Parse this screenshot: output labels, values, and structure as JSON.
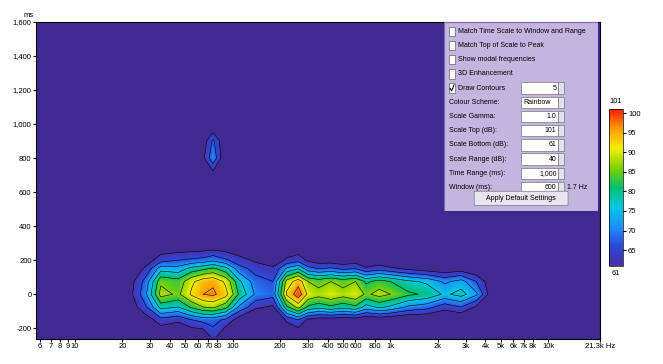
{
  "chart_data": {
    "type": "heatmap",
    "log": "x",
    "y_label": "ms",
    "x": [
      20,
      28,
      35,
      45,
      55,
      65,
      75,
      90,
      110,
      140,
      180,
      220,
      260,
      300,
      350,
      420,
      500,
      600,
      700,
      850,
      1000,
      1300,
      1700,
      2200,
      2800,
      3500,
      4500
    ],
    "y": [
      -250,
      -150,
      -75,
      0,
      75,
      150,
      200,
      300,
      700,
      800,
      900,
      1000
    ],
    "cells": [
      [
        55,
        55,
        55,
        55,
        55,
        55,
        63,
        55,
        55,
        55,
        55,
        55,
        55,
        55,
        55,
        55,
        55,
        55,
        55,
        55,
        55,
        55,
        55,
        55,
        55,
        55,
        55
      ],
      [
        55,
        58,
        64,
        62,
        66,
        68,
        68,
        65,
        58,
        55,
        55,
        62,
        66,
        60,
        58,
        58,
        57,
        58,
        56,
        57,
        56,
        55,
        55,
        55,
        55,
        55,
        55
      ],
      [
        55,
        65,
        78,
        76,
        82,
        86,
        87,
        83,
        70,
        62,
        60,
        80,
        88,
        80,
        78,
        80,
        78,
        80,
        74,
        77,
        75,
        70,
        68,
        63,
        66,
        60,
        55
      ],
      [
        55,
        70,
        88,
        85,
        92,
        96,
        97,
        93,
        80,
        70,
        68,
        92,
        99,
        90,
        88,
        90,
        88,
        90,
        85,
        88,
        86,
        82,
        80,
        75,
        78,
        72,
        55
      ],
      [
        55,
        68,
        85,
        83,
        90,
        94,
        95,
        90,
        77,
        68,
        66,
        88,
        94,
        86,
        84,
        86,
        84,
        86,
        80,
        83,
        81,
        77,
        75,
        70,
        73,
        66,
        55
      ],
      [
        55,
        62,
        74,
        73,
        78,
        80,
        82,
        78,
        68,
        64,
        62,
        72,
        76,
        68,
        66,
        67,
        65,
        66,
        62,
        64,
        62,
        60,
        58,
        57,
        58,
        56,
        55
      ],
      [
        55,
        58,
        64,
        66,
        67,
        68,
        70,
        67,
        63,
        60,
        58,
        62,
        64,
        60,
        58,
        58,
        57,
        58,
        56,
        57,
        56,
        55,
        55,
        55,
        55,
        55,
        55
      ],
      [
        55,
        55,
        55,
        55,
        55,
        55,
        55,
        55,
        55,
        55,
        55,
        55,
        55,
        55,
        55,
        55,
        55,
        55,
        55,
        55,
        55,
        55,
        55,
        55,
        55,
        55,
        55
      ],
      [
        55,
        55,
        55,
        55,
        55,
        55,
        58,
        55,
        55,
        55,
        55,
        55,
        55,
        55,
        55,
        55,
        55,
        55,
        55,
        55,
        55,
        55,
        55,
        55,
        55,
        55,
        55
      ],
      [
        55,
        55,
        55,
        55,
        55,
        60,
        70,
        55,
        55,
        55,
        55,
        55,
        55,
        55,
        55,
        55,
        55,
        55,
        55,
        55,
        55,
        55,
        55,
        55,
        55,
        55,
        55
      ],
      [
        55,
        55,
        55,
        55,
        55,
        58,
        67,
        55,
        55,
        55,
        55,
        55,
        55,
        55,
        55,
        55,
        55,
        55,
        55,
        55,
        55,
        55,
        55,
        55,
        55,
        55,
        55
      ],
      [
        55,
        55,
        55,
        55,
        55,
        55,
        55,
        55,
        55,
        55,
        55,
        55,
        55,
        55,
        55,
        55,
        55,
        55,
        55,
        55,
        55,
        55,
        55,
        55,
        55,
        55,
        55
      ]
    ],
    "xlim": [
      5.7,
      21300
    ],
    "xticks": [
      6,
      7,
      8,
      9,
      10,
      20,
      30,
      40,
      50,
      60,
      70,
      80,
      100,
      200,
      300,
      400,
      500,
      600,
      800,
      {
        "value": 1000,
        "label": "1k"
      },
      {
        "value": 2000,
        "label": "2k"
      },
      {
        "value": 3000,
        "label": "3k"
      },
      {
        "value": 4000,
        "label": "4k"
      },
      {
        "value": 5000,
        "label": "5k"
      },
      {
        "value": 6000,
        "label": "6k"
      },
      {
        "value": 7000,
        "label": "7k"
      },
      {
        "value": 8000,
        "label": "8k"
      },
      {
        "value": 10000,
        "label": "10k"
      },
      {
        "value": 21300,
        "label": "21.3k Hz"
      }
    ],
    "ylim": [
      -260,
      1600
    ],
    "yticks": [
      -200,
      0,
      200,
      400,
      600,
      800,
      {
        "value": 1000,
        "label": "1,000"
      },
      {
        "value": 1200,
        "label": "1,200"
      },
      {
        "value": 1400,
        "label": "1,400"
      },
      {
        "value": 1600,
        "label": "1,600"
      }
    ],
    "colorbar_lim": [
      61,
      101
    ],
    "colorbar_ticks": [
      65,
      70,
      75,
      80,
      85,
      90,
      95,
      100
    ]
  },
  "panel": {
    "checkboxes": [
      {
        "label": "Match Time Scale to Window and Range",
        "checked": false
      },
      {
        "label": "Match Top of Scale to Peak",
        "checked": false
      },
      {
        "label": "Show modal frequencies",
        "checked": false
      },
      {
        "label": "3D Enhancement",
        "checked": false
      }
    ],
    "draw_contours": {
      "label": "Draw Contours",
      "checked": true,
      "value": "5"
    },
    "fields": [
      {
        "label": "Colour Scheme:",
        "value": "Rainbow"
      },
      {
        "label": "Scale Gamma:",
        "value": "1.0"
      },
      {
        "label": "Scale Top (dB):",
        "value": "101"
      },
      {
        "label": "Scale Bottom (dB):",
        "value": "61"
      },
      {
        "label": "Scale Range (dB):",
        "value": "40"
      },
      {
        "label": "Time Range (ms):",
        "value": "1,000"
      },
      {
        "label": "Window (ms):",
        "value": "600",
        "extra": "1.7 Hz"
      }
    ],
    "button": "Apply Default Settings"
  }
}
